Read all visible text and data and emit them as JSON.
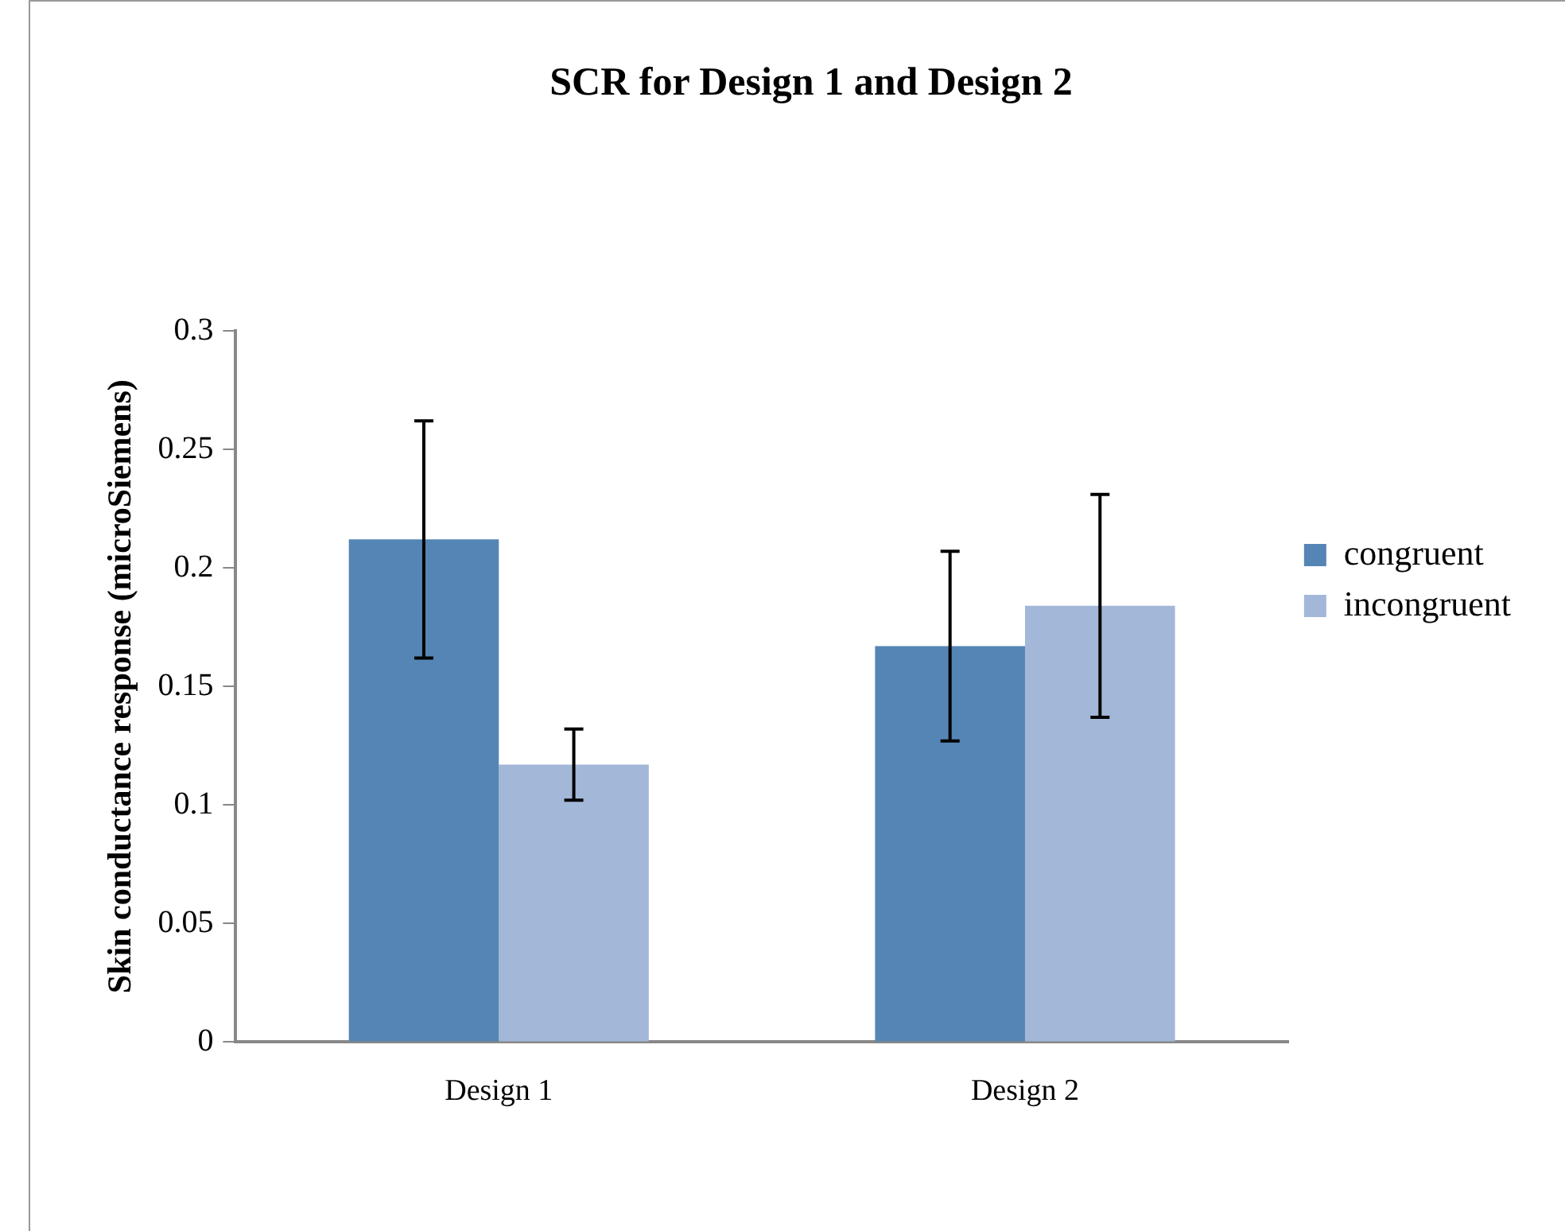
{
  "chart_data": {
    "type": "bar",
    "title": "SCR for Design 1 and Design 2",
    "ylabel": "Skin conductance response (microSiemens)",
    "categories": [
      "Design 1",
      "Design 2"
    ],
    "series": [
      {
        "name": "congruent",
        "color": "#5585b5",
        "values": [
          0.212,
          0.167
        ],
        "errors": [
          0.05,
          0.04
        ]
      },
      {
        "name": "incongruent",
        "color": "#a3b7d9",
        "values": [
          0.117,
          0.184
        ],
        "errors": [
          0.015,
          0.047
        ]
      }
    ],
    "ylim": [
      0,
      0.3
    ],
    "yticks": [
      0,
      0.05,
      0.1,
      0.15,
      0.2,
      0.25,
      0.3
    ],
    "grid": false,
    "legend": "right"
  }
}
